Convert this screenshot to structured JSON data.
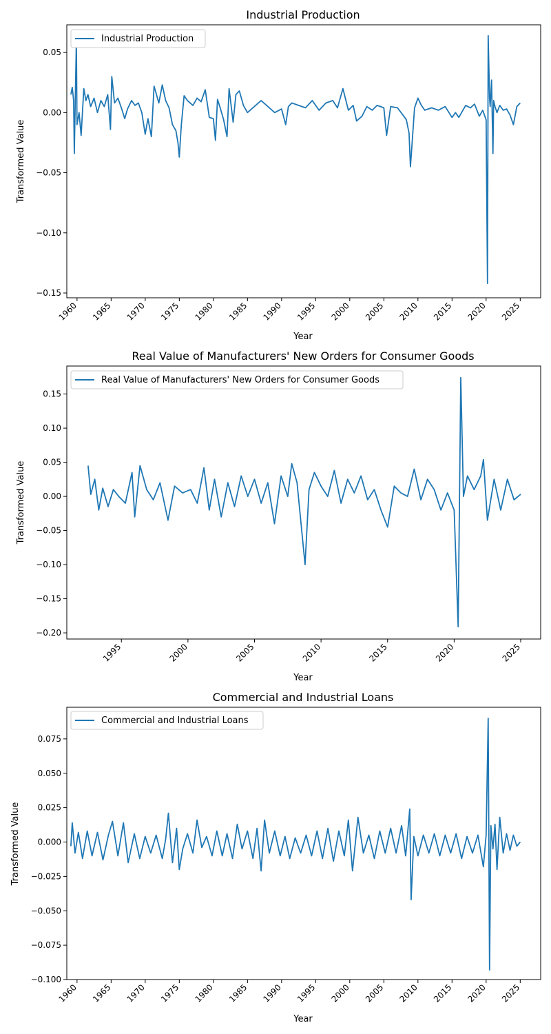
{
  "chart_data": [
    {
      "type": "line",
      "title": "Industrial Production",
      "xlabel": "Year",
      "ylabel": "Transformed Value",
      "xlim": [
        1958.5,
        2028.0
      ],
      "ylim": [
        -0.154,
        0.073
      ],
      "x_ticks": [
        1960,
        1965,
        1970,
        1975,
        1980,
        1985,
        1990,
        1995,
        2000,
        2005,
        2010,
        2015,
        2020,
        2025
      ],
      "x_tick_labels": [
        "1960",
        "1965",
        "1970",
        "1975",
        "1980",
        "1985",
        "1990",
        "1995",
        "2000",
        "2005",
        "2010",
        "2015",
        "2020",
        "2025"
      ],
      "y_ticks": [
        0.05,
        0.0,
        -0.05,
        -0.1,
        -0.15
      ],
      "y_tick_labels": [
        "0.05",
        "0.00",
        "−0.05",
        "−0.10",
        "−0.15"
      ],
      "grid": false,
      "legend": "upper-left",
      "series": [
        {
          "name": "Industrial Production",
          "color": "#1f77b4",
          "x": [
            1959.1,
            1959.3,
            1959.5,
            1959.6,
            1959.7,
            1959.9,
            1960.0,
            1960.3,
            1960.6,
            1961.0,
            1961.3,
            1961.6,
            1962.0,
            1962.5,
            1963.0,
            1963.5,
            1964.0,
            1964.5,
            1964.9,
            1965.1,
            1965.5,
            1966.0,
            1966.5,
            1967.0,
            1967.4,
            1968.0,
            1968.5,
            1969.0,
            1969.5,
            1970.0,
            1970.4,
            1970.9,
            1971.3,
            1972.0,
            1972.5,
            1973.0,
            1973.5,
            1974.0,
            1974.5,
            1974.8,
            1975.0,
            1975.3,
            1975.7,
            1976.2,
            1977.0,
            1977.6,
            1978.2,
            1978.8,
            1979.4,
            1980.0,
            1980.3,
            1980.6,
            1981.0,
            1981.5,
            1982.0,
            1982.3,
            1982.9,
            1983.3,
            1983.8,
            1984.4,
            1985.0,
            1986.0,
            1987.0,
            1988.0,
            1989.0,
            1990.0,
            1990.6,
            1991.0,
            1991.5,
            1992.5,
            1993.5,
            1994.5,
            1995.5,
            1996.5,
            1997.5,
            1998.2,
            1999.0,
            1999.8,
            2000.5,
            2001.0,
            2001.8,
            2002.5,
            2003.3,
            2004.0,
            2005.0,
            2005.4,
            2006.0,
            2007.0,
            2007.8,
            2008.3,
            2008.7,
            2008.9,
            2009.1,
            2009.5,
            2010.0,
            2010.5,
            2011.0,
            2012.0,
            2013.0,
            2014.0,
            2015.0,
            2015.5,
            2016.0,
            2017.0,
            2017.7,
            2018.3,
            2019.0,
            2019.5,
            2020.0,
            2020.2,
            2020.3,
            2020.5,
            2020.6,
            2020.8,
            2021.0,
            2021.1,
            2021.3,
            2021.6,
            2022.0,
            2022.5,
            2023.0,
            2023.5,
            2024.0,
            2024.5,
            2025.0
          ],
          "values": [
            0.015,
            0.021,
            0.01,
            -0.034,
            -0.002,
            0.06,
            -0.01,
            0.0,
            -0.019,
            0.02,
            0.01,
            0.015,
            0.005,
            0.012,
            0.0,
            0.01,
            0.005,
            0.015,
            -0.014,
            0.03,
            0.008,
            0.012,
            0.004,
            -0.005,
            0.003,
            0.01,
            0.006,
            0.008,
            0.0,
            -0.018,
            -0.005,
            -0.02,
            0.022,
            0.008,
            0.023,
            0.01,
            0.004,
            -0.01,
            -0.015,
            -0.025,
            -0.037,
            -0.01,
            0.014,
            0.01,
            0.006,
            0.012,
            0.009,
            0.019,
            -0.004,
            -0.005,
            -0.023,
            0.011,
            0.004,
            -0.006,
            -0.02,
            0.02,
            -0.008,
            0.015,
            0.018,
            0.006,
            0.0,
            0.005,
            0.01,
            0.005,
            0.0,
            0.003,
            -0.01,
            0.005,
            0.008,
            0.006,
            0.004,
            0.01,
            0.002,
            0.008,
            0.01,
            0.004,
            0.02,
            0.002,
            0.006,
            -0.007,
            -0.003,
            0.005,
            0.002,
            0.006,
            0.004,
            -0.019,
            0.005,
            0.004,
            -0.002,
            -0.006,
            -0.017,
            -0.045,
            -0.029,
            0.004,
            0.012,
            0.006,
            0.002,
            0.004,
            0.002,
            0.005,
            -0.004,
            0.0,
            -0.004,
            0.006,
            0.004,
            0.007,
            -0.003,
            0.002,
            -0.006,
            -0.142,
            0.064,
            0.012,
            0.005,
            0.027,
            -0.034,
            0.01,
            0.005,
            0.0,
            0.006,
            0.002,
            0.003,
            -0.002,
            -0.01,
            0.005,
            0.008
          ]
        }
      ]
    },
    {
      "type": "line",
      "title": "Real Value of Manufacturers' New Orders for Consumer Goods",
      "xlabel": "Year",
      "ylabel": "Transformed Value",
      "xlim": [
        1990.9,
        2026.5
      ],
      "ylim": [
        -0.209,
        0.191
      ],
      "x_ticks": [
        1995,
        2000,
        2005,
        2010,
        2015,
        2020,
        2025
      ],
      "x_tick_labels": [
        "1995",
        "2000",
        "2005",
        "2010",
        "2015",
        "2020",
        "2025"
      ],
      "y_ticks": [
        0.15,
        0.1,
        0.05,
        0.0,
        -0.05,
        -0.1,
        -0.15,
        -0.2
      ],
      "y_tick_labels": [
        "0.15",
        "0.10",
        "0.05",
        "0.00",
        "−0.05",
        "−0.10",
        "−0.15",
        "−0.20"
      ],
      "grid": false,
      "legend": "upper-left",
      "series": [
        {
          "name": "Real Value of Manufacturers' New Orders for Consumer Goods",
          "color": "#1f77b4",
          "x": [
            1992.5,
            1992.7,
            1993.0,
            1993.3,
            1993.6,
            1994.0,
            1994.4,
            1994.8,
            1995.3,
            1995.8,
            1996.0,
            1996.4,
            1996.9,
            1997.4,
            1997.9,
            1998.5,
            1999.0,
            1999.6,
            2000.2,
            2000.7,
            2001.2,
            2001.6,
            2002.0,
            2002.5,
            2003.0,
            2003.5,
            2004.0,
            2004.5,
            2005.0,
            2005.5,
            2006.0,
            2006.5,
            2007.0,
            2007.5,
            2007.8,
            2008.2,
            2008.5,
            2008.8,
            2009.1,
            2009.5,
            2010.0,
            2010.5,
            2011.0,
            2011.5,
            2012.0,
            2012.5,
            2013.0,
            2013.5,
            2014.0,
            2014.5,
            2015.0,
            2015.5,
            2016.0,
            2016.5,
            2017.0,
            2017.5,
            2018.0,
            2018.5,
            2019.0,
            2019.5,
            2020.0,
            2020.3,
            2020.5,
            2020.7,
            2021.0,
            2021.5,
            2022.0,
            2022.2,
            2022.5,
            2023.0,
            2023.5,
            2024.0,
            2024.5,
            2025.0
          ],
          "values": [
            0.045,
            0.003,
            0.025,
            -0.02,
            0.012,
            -0.015,
            0.01,
            0.0,
            -0.01,
            0.035,
            -0.03,
            0.045,
            0.01,
            -0.005,
            0.02,
            -0.035,
            0.015,
            0.005,
            0.01,
            -0.01,
            0.042,
            -0.02,
            0.025,
            -0.03,
            0.02,
            -0.015,
            0.03,
            0.0,
            0.025,
            -0.01,
            0.02,
            -0.04,
            0.03,
            0.0,
            0.048,
            0.02,
            -0.04,
            -0.1,
            0.01,
            0.035,
            0.015,
            0.0,
            0.038,
            -0.01,
            0.025,
            0.005,
            0.03,
            -0.005,
            0.01,
            -0.02,
            -0.045,
            0.015,
            0.005,
            0.0,
            0.04,
            -0.005,
            0.025,
            0.01,
            -0.02,
            0.005,
            -0.02,
            -0.191,
            0.174,
            0.0,
            0.03,
            0.01,
            0.03,
            0.054,
            -0.035,
            0.025,
            -0.02,
            0.025,
            -0.005,
            0.003
          ]
        }
      ]
    },
    {
      "type": "line",
      "title": "Commercial and Industrial Loans",
      "xlabel": "Year",
      "ylabel": "Transformed Value",
      "xlim": [
        1958.5,
        2028.0
      ],
      "ylim": [
        -0.1,
        0.098
      ],
      "x_ticks": [
        1960,
        1965,
        1970,
        1975,
        1980,
        1985,
        1990,
        1995,
        2000,
        2005,
        2010,
        2015,
        2020,
        2025
      ],
      "x_tick_labels": [
        "1960",
        "1965",
        "1970",
        "1975",
        "1980",
        "1985",
        "1990",
        "1995",
        "2000",
        "2005",
        "2010",
        "2015",
        "2020",
        "2025"
      ],
      "y_ticks": [
        0.075,
        0.05,
        0.025,
        0.0,
        -0.025,
        -0.05,
        -0.075,
        -0.1
      ],
      "y_tick_labels": [
        "0.075",
        "0.050",
        "0.025",
        "0.000",
        "−0.025",
        "−0.050",
        "−0.075",
        "−0.100"
      ],
      "grid": false,
      "legend": "upper-left",
      "series": [
        {
          "name": "Commercial and Industrial Loans",
          "color": "#1f77b4",
          "x": [
            1959.1,
            1959.3,
            1959.7,
            1960.2,
            1960.8,
            1961.5,
            1962.2,
            1963.0,
            1963.8,
            1964.6,
            1965.2,
            1966.0,
            1966.8,
            1967.5,
            1968.4,
            1969.2,
            1970.0,
            1970.8,
            1971.6,
            1972.5,
            1973.0,
            1973.4,
            1974.0,
            1974.6,
            1975.0,
            1975.5,
            1976.2,
            1977.0,
            1977.6,
            1978.3,
            1979.0,
            1979.8,
            1980.5,
            1981.3,
            1982.0,
            1982.8,
            1983.5,
            1984.2,
            1985.0,
            1985.8,
            1986.4,
            1987.0,
            1987.5,
            1988.2,
            1989.0,
            1989.8,
            1990.5,
            1991.2,
            1992.0,
            1992.8,
            1993.6,
            1994.4,
            1995.2,
            1996.0,
            1996.8,
            1997.6,
            1998.4,
            1999.2,
            1999.8,
            2000.4,
            2001.2,
            2002.0,
            2002.8,
            2003.6,
            2004.4,
            2005.2,
            2006.0,
            2006.8,
            2007.6,
            2008.2,
            2008.8,
            2009.0,
            2009.4,
            2010.0,
            2010.8,
            2011.6,
            2012.4,
            2013.2,
            2014.0,
            2014.8,
            2015.6,
            2016.4,
            2017.2,
            2018.0,
            2018.8,
            2019.6,
            2020.0,
            2020.3,
            2020.5,
            2020.7,
            2021.0,
            2021.3,
            2021.6,
            2022.0,
            2022.5,
            2023.0,
            2023.5,
            2024.0,
            2024.5,
            2025.0
          ],
          "values": [
            -0.003,
            0.014,
            -0.008,
            0.007,
            -0.012,
            0.008,
            -0.01,
            0.007,
            -0.013,
            0.005,
            0.015,
            -0.01,
            0.014,
            -0.015,
            0.006,
            -0.012,
            0.004,
            -0.008,
            0.005,
            -0.012,
            0.002,
            0.021,
            -0.015,
            0.01,
            -0.02,
            -0.005,
            0.006,
            -0.008,
            0.016,
            -0.004,
            0.004,
            -0.01,
            0.008,
            -0.01,
            0.006,
            -0.012,
            0.013,
            -0.005,
            0.008,
            -0.012,
            0.01,
            -0.021,
            0.016,
            -0.008,
            0.008,
            -0.01,
            0.004,
            -0.012,
            0.003,
            -0.008,
            0.005,
            -0.01,
            0.008,
            -0.012,
            0.01,
            -0.014,
            0.008,
            -0.01,
            0.016,
            -0.021,
            0.018,
            -0.008,
            0.005,
            -0.012,
            0.008,
            -0.008,
            0.01,
            -0.008,
            0.012,
            -0.01,
            0.024,
            -0.042,
            0.004,
            -0.01,
            0.005,
            -0.008,
            0.006,
            -0.01,
            0.005,
            -0.008,
            0.006,
            -0.012,
            0.004,
            -0.008,
            0.005,
            -0.018,
            0.005,
            0.09,
            -0.093,
            0.012,
            -0.005,
            0.013,
            -0.02,
            0.018,
            -0.008,
            0.006,
            -0.006,
            0.005,
            -0.003,
            0.0
          ]
        }
      ]
    }
  ]
}
